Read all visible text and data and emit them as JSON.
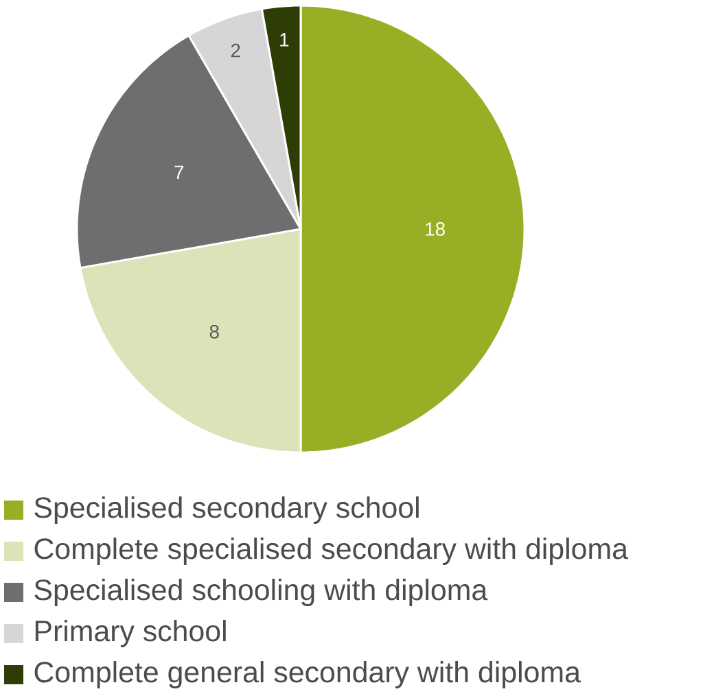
{
  "chart_data": {
    "type": "pie",
    "categories": [
      "Specialised secondary school",
      "Complete specialised secondary with diploma",
      "Specialised schooling with diploma",
      "Primary school",
      "Complete general secondary with diploma"
    ],
    "values": [
      18,
      8,
      7,
      2,
      1
    ],
    "colors": [
      "#9aae25",
      "#dce3b8",
      "#6d6e70",
      "#d6d6d6",
      "#2e3d06"
    ],
    "data_labels": true,
    "legend": "bottom"
  }
}
